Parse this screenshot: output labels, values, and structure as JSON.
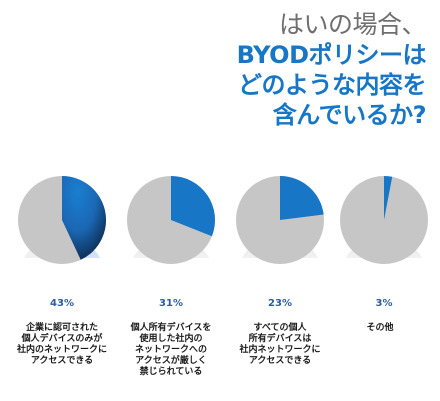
{
  "title": {
    "line1": "はいの場合、",
    "line2": "BYODポリシーは",
    "line3": "どのような内容を",
    "line4": "含んでいるか?"
  },
  "colors": {
    "accent": "#1777c6",
    "pie_gray": "#c6c6c6",
    "title_gray": "#6f6f6f",
    "pct_text": "#2a5d9c"
  },
  "chart_data": {
    "type": "pie",
    "title": "はいの場合、BYODポリシーはどのような内容を含んでいるか?",
    "categories": [
      "企業に認可された個人デバイスのみが社内のネットワークにアクセスできる",
      "個人所有デバイスを使用した社内のネットワークへのアクセスが厳しく禁じられている",
      "すべての個人所有デバイスは社内ネットワークにアクセスできる",
      "その他"
    ],
    "values": [
      43,
      31,
      23,
      3
    ],
    "value_labels": [
      "43%",
      "31%",
      "23%",
      "3%"
    ],
    "label_lines": [
      [
        "企業に認可された",
        "個人デバイスのみが",
        "社内のネットワークに",
        "アクセスできる"
      ],
      [
        "個人所有デバイスを",
        "使用した社内の",
        "ネットワークへの",
        "アクセスが厳しく",
        "禁じられている"
      ],
      [
        "すべての個人",
        "所有デバイスは",
        "社内ネットワークに",
        "アクセスできる"
      ],
      [
        "その他"
      ]
    ]
  }
}
